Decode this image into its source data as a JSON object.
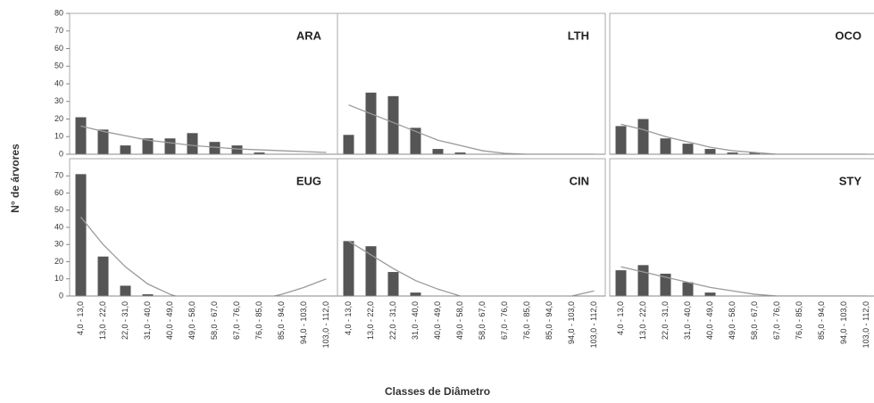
{
  "ylabel": "N° de árvores",
  "xlabel": "Classes de Diâmetro",
  "chart_data": [
    {
      "type": "bar",
      "title": "ARA",
      "ylim": [
        0,
        80
      ],
      "yticks": [
        0,
        10,
        20,
        30,
        40,
        50,
        60,
        70,
        80
      ],
      "series": [
        {
          "color": "#555555",
          "values": [
            21,
            14,
            5,
            9,
            9,
            12,
            7,
            5,
            1,
            0,
            0,
            0
          ]
        }
      ],
      "trend": {
        "color": "#9a9a9a",
        "values": [
          16,
          13,
          10.5,
          8,
          6.5,
          5,
          4,
          3,
          2.5,
          2,
          1.5,
          1
        ]
      }
    },
    {
      "type": "bar",
      "title": "LTH",
      "ylim": [
        0,
        80
      ],
      "series": [
        {
          "color": "#555555",
          "values": [
            11,
            35,
            33,
            15,
            3,
            1,
            0,
            0,
            0,
            0,
            0,
            0
          ]
        }
      ],
      "trend": {
        "color": "#9a9a9a",
        "values": [
          28,
          23,
          18,
          13,
          8,
          5,
          2,
          0.5,
          0,
          0,
          0,
          0
        ]
      }
    },
    {
      "type": "bar",
      "title": "OCO",
      "ylim": [
        0,
        80
      ],
      "series": [
        {
          "color": "#555555",
          "values": [
            16,
            20,
            9,
            6,
            3,
            1,
            1,
            0,
            0,
            0,
            0,
            0
          ]
        }
      ],
      "trend": {
        "color": "#9a9a9a",
        "values": [
          17,
          14,
          10,
          7,
          4,
          2,
          1,
          0,
          0,
          0,
          0,
          0
        ]
      }
    },
    {
      "type": "bar",
      "title": "EUG",
      "ylim": [
        0,
        80
      ],
      "yticks": [
        0,
        10,
        20,
        30,
        40,
        50,
        60,
        70
      ],
      "categories": [
        "4,0 - 13,0",
        "13,0 - 22,0",
        "22,0 - 31,0",
        "31,0 - 40,0",
        "40,0 - 49,0",
        "49,0 - 58,0",
        "58,0 - 67,0",
        "67,0 - 76,0",
        "76,0 - 85,0",
        "85,0 - 94,0",
        "94,0 - 103,0",
        "103,0 - 112,0"
      ],
      "series": [
        {
          "color": "#555555",
          "values": [
            71,
            23,
            6,
            1,
            0,
            0,
            0,
            0,
            0,
            0,
            0,
            0
          ]
        }
      ],
      "trend": {
        "color": "#9a9a9a",
        "values": [
          46,
          30,
          17,
          7,
          1,
          -3,
          -4,
          -4,
          -2,
          1,
          5,
          10
        ]
      }
    },
    {
      "type": "bar",
      "title": "CIN",
      "ylim": [
        0,
        80
      ],
      "categories": [
        "4,0 - 13,0",
        "13,0 - 22,0",
        "22,0 - 31,0",
        "31,0 - 40,0",
        "40,0 - 49,0",
        "49,0 - 58,0",
        "58,0 - 67,0",
        "67,0 - 76,0",
        "76,0 - 85,0",
        "85,0 - 94,0",
        "94,0 - 103,0",
        "103,0 - 112,0"
      ],
      "series": [
        {
          "color": "#555555",
          "values": [
            32,
            29,
            14,
            2,
            0,
            0,
            0,
            0,
            0,
            0,
            0,
            0
          ]
        }
      ],
      "trend": {
        "color": "#9a9a9a",
        "values": [
          32,
          24,
          16,
          9,
          4,
          0,
          -2,
          -3,
          -3,
          -2,
          0,
          3
        ]
      }
    },
    {
      "type": "bar",
      "title": "STY",
      "ylim": [
        0,
        80
      ],
      "categories": [
        "4,0 - 13,0",
        "13,0 - 22,0",
        "22,0 - 31,0",
        "31,0 - 40,0",
        "40,0 - 49,0",
        "49,0 - 58,0",
        "58,0 - 67,0",
        "67,0 - 76,0",
        "76,0 - 85,0",
        "85,0 - 94,0",
        "94,0 - 103,0",
        "103,0 - 112,0"
      ],
      "series": [
        {
          "color": "#555555",
          "values": [
            15,
            18,
            13,
            8,
            2,
            0,
            0,
            0,
            0,
            0,
            0,
            0
          ]
        }
      ],
      "trend": {
        "color": "#9a9a9a",
        "values": [
          17,
          14,
          11,
          8,
          5,
          3,
          1,
          0,
          0,
          0,
          0,
          0
        ]
      }
    }
  ]
}
